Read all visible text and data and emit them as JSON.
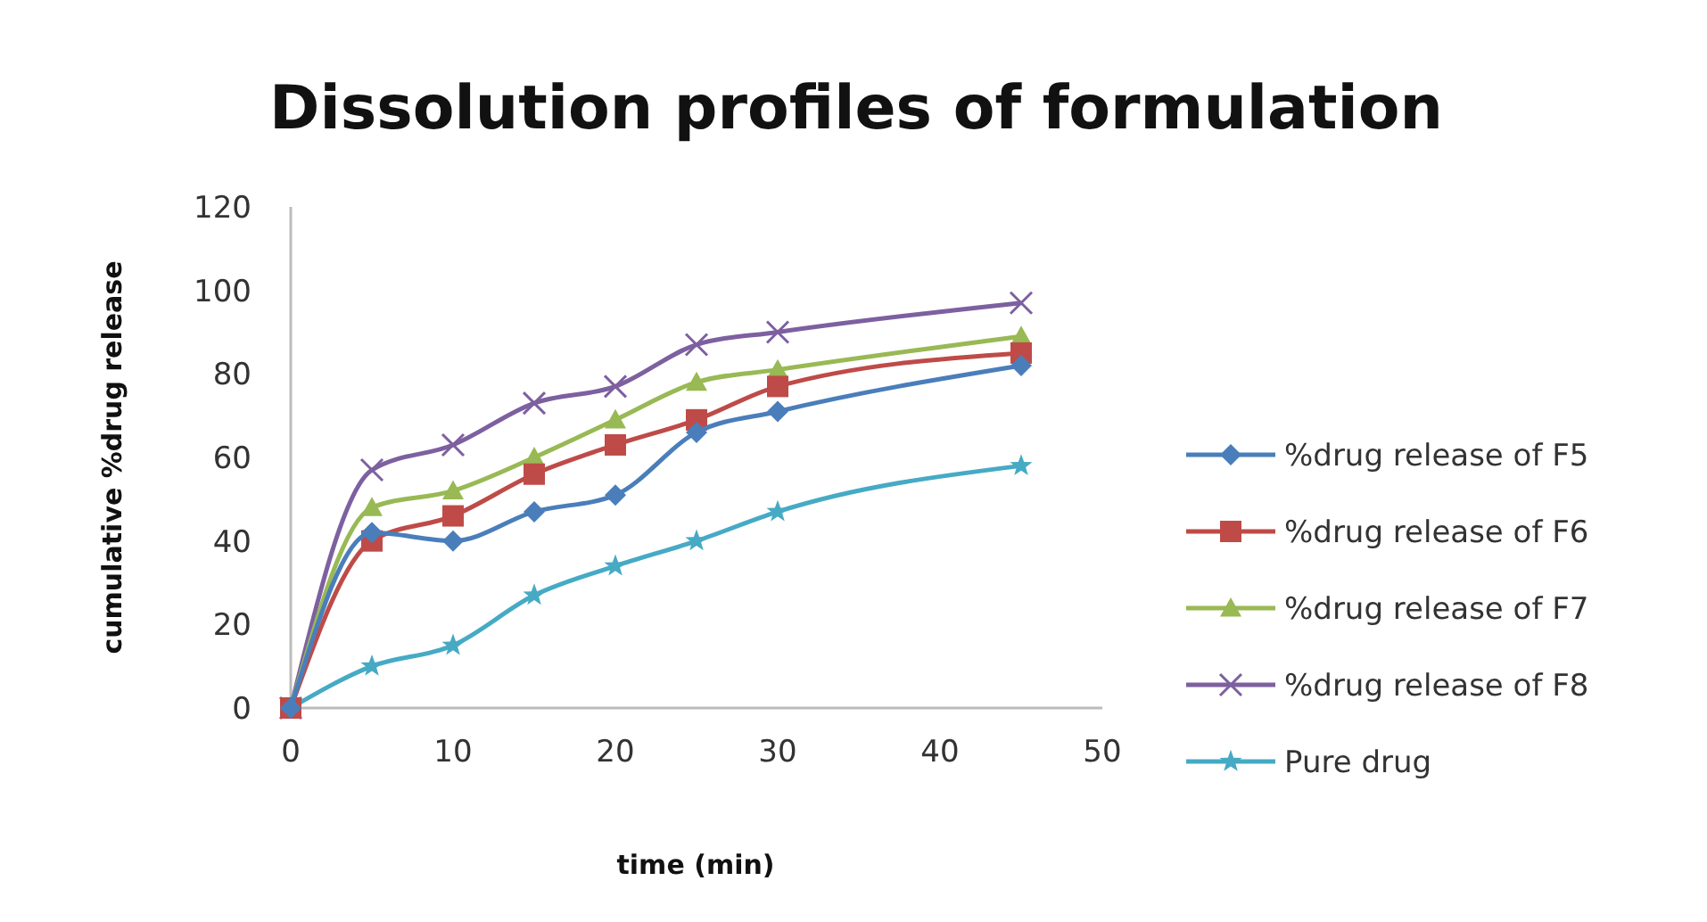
{
  "chart_data": {
    "type": "line",
    "title": "Dissolution profiles of formulation",
    "xlabel": "time (min)",
    "ylabel": "cumulative %drug release",
    "x": [
      0,
      5,
      10,
      15,
      20,
      25,
      30,
      45
    ],
    "series": [
      {
        "name": "%drug release of F5",
        "color": "#4a7ebb",
        "marker": "diamond",
        "values": [
          0,
          42,
          40,
          47,
          51,
          66,
          71,
          82
        ]
      },
      {
        "name": "%drug release of F6",
        "color": "#be4b48",
        "marker": "square",
        "values": [
          0,
          40,
          46,
          56,
          63,
          69,
          77,
          85
        ]
      },
      {
        "name": "%drug release of F7",
        "color": "#98b954",
        "marker": "triangle",
        "values": [
          0,
          48,
          52,
          60,
          69,
          78,
          81,
          89
        ]
      },
      {
        "name": "%drug release of F8",
        "color": "#7d60a0",
        "marker": "cross",
        "values": [
          0,
          57,
          63,
          73,
          77,
          87,
          90,
          97
        ]
      },
      {
        "name": "Pure drug",
        "color": "#46aac5",
        "marker": "star",
        "values": [
          0,
          10,
          15,
          27,
          34,
          40,
          47,
          58
        ]
      }
    ],
    "xlim": [
      0,
      50
    ],
    "xticks": [
      0,
      10,
      20,
      30,
      40,
      50
    ],
    "ylim": [
      0,
      120
    ],
    "yticks": [
      0,
      20,
      40,
      60,
      80,
      100,
      120
    ],
    "grid": false,
    "legend": "right",
    "line_style": "solid"
  }
}
